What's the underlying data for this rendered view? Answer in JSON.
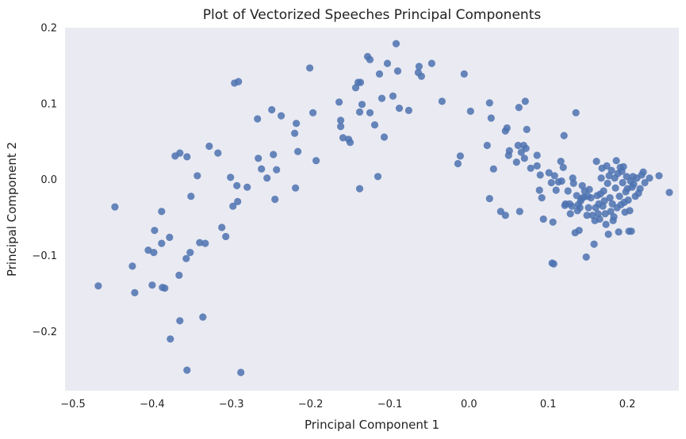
{
  "chart_data": {
    "type": "scatter",
    "title": "Plot of Vectorized Speeches Principal Components",
    "xlabel": "Principal Component 1",
    "ylabel": "Principal Component 2",
    "xlim": [
      -0.51,
      0.265
    ],
    "ylim": [
      -0.278,
      0.2
    ],
    "xticks": [
      -0.5,
      -0.4,
      -0.3,
      -0.2,
      -0.1,
      0.0,
      0.1,
      0.2
    ],
    "xtick_labels": [
      "−0.5",
      "−0.4",
      "−0.3",
      "−0.2",
      "−0.1",
      "0.0",
      "0.1",
      "0.2"
    ],
    "yticks": [
      -0.2,
      -0.1,
      0.0,
      0.1,
      0.2
    ],
    "ytick_labels": [
      "−0.2",
      "−0.1",
      "0.0",
      "0.1",
      "0.2"
    ],
    "grid": false,
    "background_color": "#eaeaf2",
    "marker_color": "#4c72b0",
    "points": [
      [
        -0.468,
        -0.14
      ],
      [
        -0.447,
        -0.036
      ],
      [
        -0.425,
        -0.114
      ],
      [
        -0.422,
        -0.149
      ],
      [
        -0.405,
        -0.093
      ],
      [
        -0.4,
        -0.139
      ],
      [
        -0.398,
        -0.096
      ],
      [
        -0.397,
        -0.067
      ],
      [
        -0.388,
        -0.042
      ],
      [
        -0.388,
        -0.084
      ],
      [
        -0.387,
        -0.142
      ],
      [
        -0.384,
        -0.143
      ],
      [
        -0.378,
        -0.076
      ],
      [
        -0.377,
        -0.21
      ],
      [
        -0.371,
        0.031
      ],
      [
        -0.366,
        -0.126
      ],
      [
        -0.365,
        0.035
      ],
      [
        -0.365,
        -0.186
      ],
      [
        -0.357,
        -0.104
      ],
      [
        -0.356,
        0.03
      ],
      [
        -0.356,
        -0.251
      ],
      [
        -0.352,
        -0.096
      ],
      [
        -0.351,
        -0.022
      ],
      [
        -0.343,
        0.005
      ],
      [
        -0.34,
        -0.083
      ],
      [
        -0.336,
        -0.181
      ],
      [
        -0.333,
        -0.084
      ],
      [
        -0.328,
        0.044
      ],
      [
        -0.317,
        0.035
      ],
      [
        -0.312,
        -0.063
      ],
      [
        -0.307,
        -0.075
      ],
      [
        -0.301,
        0.003
      ],
      [
        -0.298,
        -0.035
      ],
      [
        -0.296,
        0.127
      ],
      [
        -0.293,
        -0.008
      ],
      [
        -0.292,
        -0.029
      ],
      [
        -0.291,
        0.129
      ],
      [
        -0.288,
        -0.254
      ],
      [
        -0.28,
        -0.01
      ],
      [
        -0.267,
        0.08
      ],
      [
        -0.266,
        0.028
      ],
      [
        -0.262,
        0.014
      ],
      [
        -0.255,
        0.002
      ],
      [
        -0.249,
        0.092
      ],
      [
        -0.247,
        0.033
      ],
      [
        -0.245,
        -0.026
      ],
      [
        -0.243,
        0.013
      ],
      [
        -0.237,
        0.084
      ],
      [
        -0.22,
        0.061
      ],
      [
        -0.219,
        -0.011
      ],
      [
        -0.218,
        0.074
      ],
      [
        -0.216,
        0.037
      ],
      [
        -0.201,
        0.147
      ],
      [
        -0.197,
        0.088
      ],
      [
        -0.193,
        0.025
      ],
      [
        -0.164,
        0.102
      ],
      [
        -0.162,
        0.078
      ],
      [
        -0.162,
        0.07
      ],
      [
        -0.159,
        0.055
      ],
      [
        -0.152,
        0.053
      ],
      [
        -0.15,
        0.049
      ],
      [
        -0.143,
        0.121
      ],
      [
        -0.14,
        0.128
      ],
      [
        -0.138,
        0.089
      ],
      [
        -0.138,
        -0.012
      ],
      [
        -0.137,
        0.128
      ],
      [
        -0.135,
        0.099
      ],
      [
        -0.128,
        0.162
      ],
      [
        -0.125,
        0.158
      ],
      [
        -0.125,
        0.088
      ],
      [
        -0.119,
        0.072
      ],
      [
        -0.115,
        0.004
      ],
      [
        -0.113,
        0.139
      ],
      [
        -0.11,
        0.107
      ],
      [
        -0.107,
        0.056
      ],
      [
        -0.103,
        0.153
      ],
      [
        -0.096,
        0.11
      ],
      [
        -0.092,
        0.179
      ],
      [
        -0.09,
        0.143
      ],
      [
        -0.088,
        0.094
      ],
      [
        -0.076,
        0.091
      ],
      [
        -0.064,
        0.141
      ],
      [
        -0.063,
        0.149
      ],
      [
        -0.06,
        0.136
      ],
      [
        -0.047,
        0.153
      ],
      [
        -0.034,
        0.103
      ],
      [
        -0.014,
        0.021
      ],
      [
        -0.011,
        0.031
      ],
      [
        -0.006,
        0.139
      ],
      [
        0.002,
        0.09
      ],
      [
        0.023,
        0.045
      ],
      [
        0.026,
        -0.025
      ],
      [
        0.026,
        0.101
      ],
      [
        0.028,
        0.081
      ],
      [
        0.031,
        0.014
      ],
      [
        0.04,
        -0.042
      ],
      [
        0.046,
        -0.047
      ],
      [
        0.046,
        0.064
      ],
      [
        0.048,
        0.068
      ],
      [
        0.05,
        0.032
      ],
      [
        0.051,
        0.038
      ],
      [
        0.06,
        0.023
      ],
      [
        0.062,
        0.045
      ],
      [
        0.063,
        0.095
      ],
      [
        0.064,
        -0.042
      ],
      [
        0.066,
        0.036
      ],
      [
        0.069,
        0.045
      ],
      [
        0.07,
        0.028
      ],
      [
        0.071,
        0.103
      ],
      [
        0.072,
        0.041
      ],
      [
        0.073,
        0.066
      ],
      [
        0.078,
        0.015
      ],
      [
        0.086,
        0.018
      ],
      [
        0.086,
        0.032
      ],
      [
        0.089,
        -0.014
      ],
      [
        0.09,
        0.006
      ],
      [
        0.092,
        -0.024
      ],
      [
        0.094,
        -0.052
      ],
      [
        0.101,
        0.009
      ],
      [
        0.104,
        -0.004
      ],
      [
        0.105,
        -0.11
      ],
      [
        0.106,
        -0.056
      ],
      [
        0.107,
        -0.111
      ],
      [
        0.108,
        0.005
      ],
      [
        0.11,
        -0.014
      ],
      [
        0.113,
        -0.003
      ],
      [
        0.116,
        0.024
      ],
      [
        0.117,
        -0.002
      ],
      [
        0.119,
        0.016
      ],
      [
        0.12,
        0.058
      ],
      [
        0.121,
        -0.034
      ],
      [
        0.122,
        -0.032
      ],
      [
        0.125,
        -0.015
      ],
      [
        0.127,
        -0.032
      ],
      [
        0.128,
        -0.045
      ],
      [
        0.13,
        -0.035
      ],
      [
        0.131,
        0.002
      ],
      [
        0.132,
        -0.005
      ],
      [
        0.134,
        -0.07
      ],
      [
        0.135,
        0.088
      ],
      [
        0.136,
        -0.021
      ],
      [
        0.137,
        -0.041
      ],
      [
        0.138,
        -0.033
      ],
      [
        0.139,
        -0.067
      ],
      [
        0.14,
        -0.037
      ],
      [
        0.141,
        -0.028
      ],
      [
        0.142,
        -0.025
      ],
      [
        0.143,
        -0.008
      ],
      [
        0.145,
        -0.023
      ],
      [
        0.146,
        -0.015
      ],
      [
        0.148,
        -0.102
      ],
      [
        0.149,
        -0.047
      ],
      [
        0.15,
        -0.022
      ],
      [
        0.151,
        -0.037
      ],
      [
        0.152,
        -0.013
      ],
      [
        0.154,
        -0.024
      ],
      [
        0.156,
        -0.047
      ],
      [
        0.158,
        -0.085
      ],
      [
        0.159,
        -0.054
      ],
      [
        0.16,
        -0.037
      ],
      [
        0.161,
        0.024
      ],
      [
        0.162,
        -0.021
      ],
      [
        0.163,
        -0.045
      ],
      [
        0.164,
        -0.032
      ],
      [
        0.165,
        -0.052
      ],
      [
        0.166,
        -0.019
      ],
      [
        0.167,
        0.002
      ],
      [
        0.168,
        0.015
      ],
      [
        0.169,
        -0.035
      ],
      [
        0.17,
        -0.015
      ],
      [
        0.171,
        -0.028
      ],
      [
        0.172,
        -0.045
      ],
      [
        0.173,
        -0.059
      ],
      [
        0.174,
        0.018
      ],
      [
        0.175,
        -0.005
      ],
      [
        0.176,
        -0.072
      ],
      [
        0.177,
        0.005
      ],
      [
        0.178,
        -0.024
      ],
      [
        0.179,
        -0.042
      ],
      [
        0.18,
        0.012
      ],
      [
        0.181,
        -0.032
      ],
      [
        0.182,
        -0.054
      ],
      [
        0.183,
        -0.049
      ],
      [
        0.184,
        0.002
      ],
      [
        0.185,
        -0.011
      ],
      [
        0.186,
        0.025
      ],
      [
        0.187,
        -0.037
      ],
      [
        0.188,
        0.008
      ],
      [
        0.189,
        -0.069
      ],
      [
        0.19,
        -0.022
      ],
      [
        0.191,
        0.016
      ],
      [
        0.192,
        -0.033
      ],
      [
        0.193,
        0.011
      ],
      [
        0.194,
        -0.004
      ],
      [
        0.195,
        0.017
      ],
      [
        0.196,
        -0.03
      ],
      [
        0.197,
        -0.043
      ],
      [
        0.198,
        -0.016
      ],
      [
        0.199,
        0.004
      ],
      [
        0.2,
        -0.012
      ],
      [
        0.201,
        -0.027
      ],
      [
        0.202,
        -0.068
      ],
      [
        0.203,
        -0.041
      ],
      [
        0.204,
        -0.002
      ],
      [
        0.205,
        -0.068
      ],
      [
        0.206,
        -0.01
      ],
      [
        0.207,
        0.004
      ],
      [
        0.208,
        -0.006
      ],
      [
        0.21,
        -0.022
      ],
      [
        0.212,
        0.002
      ],
      [
        0.214,
        -0.018
      ],
      [
        0.216,
        -0.012
      ],
      [
        0.218,
        0.006
      ],
      [
        0.22,
        0.01
      ],
      [
        0.222,
        -0.004
      ],
      [
        0.228,
        0.002
      ],
      [
        0.24,
        0.005
      ],
      [
        0.253,
        -0.017
      ]
    ]
  }
}
